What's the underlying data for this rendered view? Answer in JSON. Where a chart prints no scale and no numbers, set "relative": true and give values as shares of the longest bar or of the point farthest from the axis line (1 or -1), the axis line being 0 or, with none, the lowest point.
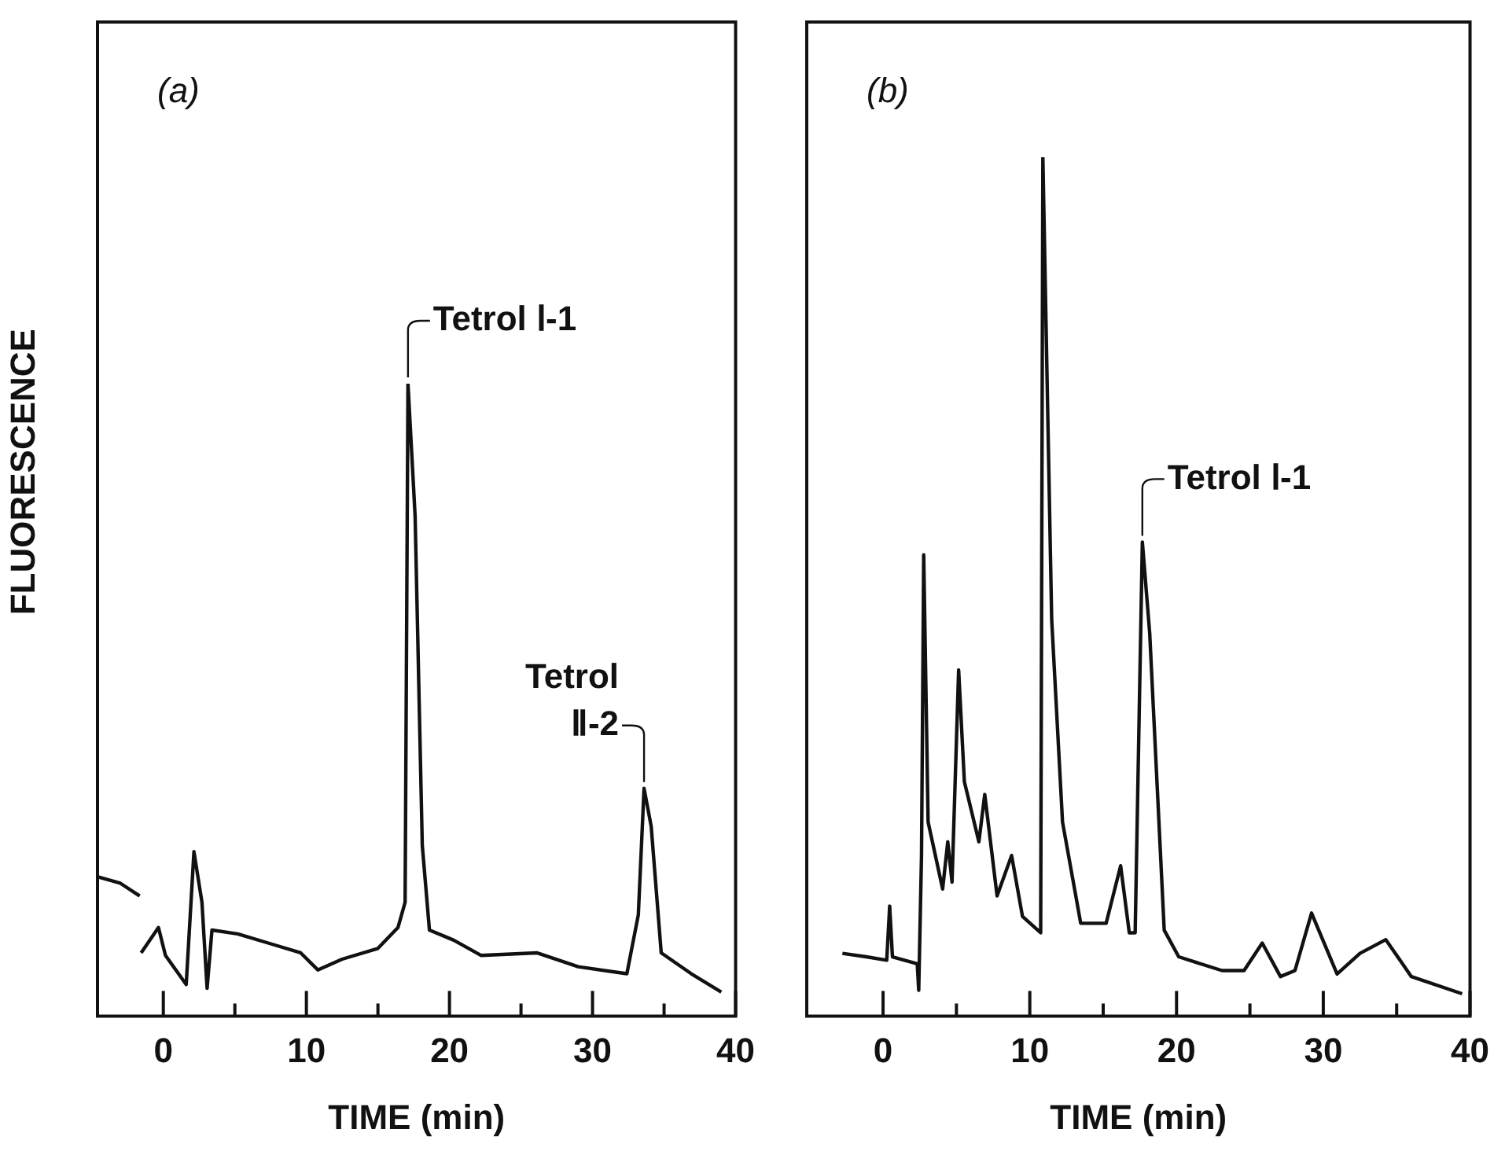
{
  "chart_data": [
    {
      "type": "line",
      "relative": true,
      "xlabel": "TIME (min)",
      "ylabel": "FLUORESCENCE",
      "xlim": [
        -4.6,
        40
      ],
      "xticks": [
        0,
        {
          "value": 5,
          "label": null
        },
        10,
        {
          "value": 15,
          "label": null
        },
        20,
        {
          "value": 25,
          "label": null
        },
        30,
        {
          "value": 35,
          "label": null
        },
        40
      ],
      "grid": false,
      "legend": false,
      "annotations": [
        "(a)",
        {
          "text": "Tetrol Ⅰ-1",
          "x": 17.1,
          "y": 1.0
        },
        {
          "text": "Tetrol\nⅡ-2",
          "x": 33.6,
          "y": 0.36
        }
      ],
      "series": [
        {
          "color": "#111111",
          "x": [
            -4.56,
            -3.0,
            -1.65,
            -1.6,
            -1.55,
            -0.34,
            0.15,
            1.6,
            2.14,
            2.7,
            3.06,
            3.4,
            5.2,
            7.7,
            9.6,
            10.8,
            12.5,
            15.0,
            16.4,
            16.9,
            17.1,
            17.6,
            18.1,
            18.6,
            20.3,
            22.2,
            26.1,
            29.0,
            32.4,
            33.2,
            33.6,
            34.1,
            34.8,
            36.9,
            39.0
          ],
          "values": [
            0.22,
            0.21,
            0.19,
            null,
            0.1,
            0.14,
            0.096,
            0.05,
            0.26,
            0.18,
            0.044,
            0.136,
            0.13,
            0.113,
            0.1,
            0.073,
            0.09,
            0.107,
            0.14,
            0.18,
            1.0,
            0.79,
            0.27,
            0.136,
            0.12,
            0.096,
            0.1,
            0.078,
            0.067,
            0.16,
            0.36,
            0.3,
            0.1,
            0.067,
            0.038
          ]
        }
      ]
    },
    {
      "type": "line",
      "relative": true,
      "xlabel": "TIME (min)",
      "xlim": [
        -5.2,
        40
      ],
      "xticks": [
        0,
        {
          "value": 5,
          "label": null
        },
        10,
        {
          "value": 15,
          "label": null
        },
        20,
        {
          "value": 25,
          "label": null
        },
        30,
        {
          "value": 35,
          "label": null
        },
        40
      ],
      "grid": false,
      "legend": false,
      "annotations": [
        "(b)",
        {
          "text": "Tetrol Ⅰ-1",
          "x": 17.67,
          "y": 0.552
        }
      ],
      "series": [
        {
          "color": "#111111",
          "x": [
            -2.77,
            -1.14,
            0.25,
            0.45,
            0.64,
            2.33,
            2.43,
            2.62,
            2.77,
            3.07,
            4.06,
            4.41,
            4.7,
            5.15,
            5.54,
            6.53,
            6.93,
            7.77,
            8.76,
            9.5,
            10.74,
            10.89,
            11.49,
            12.23,
            13.47,
            15.2,
            16.19,
            16.78,
            17.18,
            17.67,
            18.17,
            19.16,
            20.15,
            23.1,
            24.6,
            25.84,
            27.08,
            28.07,
            29.2,
            30.94,
            32.5,
            34.26,
            36.0,
            39.46
          ],
          "values": [
            0.073,
            0.069,
            0.065,
            0.128,
            0.069,
            0.061,
            0.03,
            0.187,
            0.537,
            0.226,
            0.148,
            0.203,
            0.156,
            0.403,
            0.273,
            0.203,
            0.258,
            0.14,
            0.187,
            0.116,
            0.097,
            1.0,
            0.462,
            0.226,
            0.108,
            0.108,
            0.175,
            0.097,
            0.097,
            0.552,
            0.446,
            0.1,
            0.069,
            0.053,
            0.053,
            0.085,
            0.046,
            0.053,
            0.12,
            0.049,
            0.073,
            0.089,
            0.046,
            0.026
          ]
        }
      ]
    }
  ]
}
